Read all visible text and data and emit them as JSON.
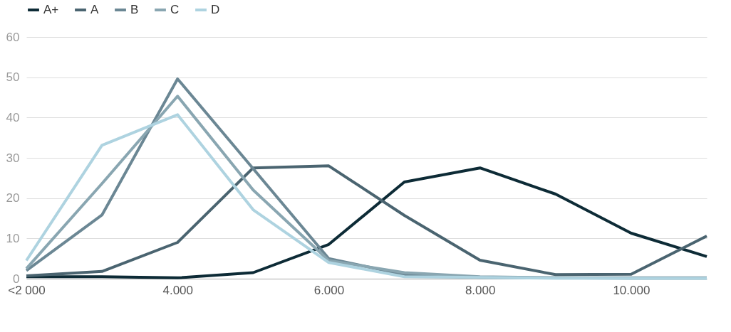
{
  "chart_data": {
    "type": "line",
    "categories": [
      "<2 000",
      null,
      "4.000",
      null,
      "6.000",
      null,
      "8.000",
      null,
      "10.000",
      null
    ],
    "series": [
      {
        "name": "A+",
        "color": "#0d2b36",
        "values": [
          0.5,
          0.5,
          0.2,
          1.5,
          8.5,
          24,
          27.5,
          21,
          11.3,
          5.5
        ]
      },
      {
        "name": "A",
        "color": "#4a6470",
        "values": [
          0.7,
          1.8,
          9,
          27.5,
          28,
          15.7,
          4.6,
          1,
          1.1,
          10.6
        ]
      },
      {
        "name": "B",
        "color": "#6b8794",
        "values": [
          2,
          15.8,
          49.6,
          27.3,
          5,
          1,
          0.3,
          0.2,
          0.2,
          0.2
        ]
      },
      {
        "name": "C",
        "color": "#89a6b1",
        "values": [
          2.5,
          23.6,
          45.3,
          22,
          4.5,
          1.5,
          0.5,
          0.2,
          0.1,
          0.1
        ]
      },
      {
        "name": "D",
        "color": "#aed3e0",
        "values": [
          4.5,
          33.1,
          40.7,
          17.1,
          4,
          0.5,
          0.3,
          0.1,
          0.1,
          0.1
        ]
      }
    ],
    "ylim": [
      0,
      60
    ],
    "yticks": [
      0,
      10,
      20,
      30,
      40,
      50,
      60
    ],
    "grid": "y",
    "legend": "top left",
    "line_style": "solid",
    "marker": "none"
  }
}
